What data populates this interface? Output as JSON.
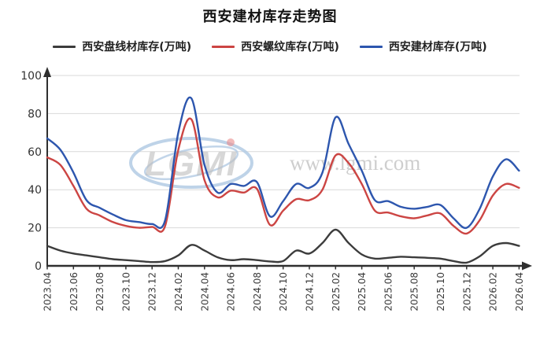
{
  "title": "西安建材库存走势图",
  "watermark": {
    "logo_text": "LGMI",
    "url_text": "www.lgmi.com"
  },
  "chart_data": {
    "type": "line",
    "title": "西安建材库存走势图",
    "x_start": "2023.04",
    "x_end": "2026.04",
    "x_step_months": 1,
    "x_tick_labels": [
      "2023.04",
      "2023.06",
      "2023.08",
      "2023.10",
      "2023.12",
      "2024.02",
      "2024.04",
      "2024.06",
      "2024.08",
      "2024.10",
      "2024.12",
      "2025.02",
      "2025.04",
      "2025.06",
      "2025.08",
      "2025.10",
      "2025.12",
      "2026.02",
      "2026.04"
    ],
    "ylim": [
      0,
      100
    ],
    "yticks": [
      0,
      20,
      40,
      60,
      80,
      100
    ],
    "grid": true,
    "legend_position": "top",
    "series": [
      {
        "name": "西安盘线材库存(万吨)",
        "color": "#3c3c3c",
        "values": [
          10.5,
          8,
          6.5,
          5.5,
          4.5,
          3.5,
          3,
          2.5,
          2,
          2.5,
          5.5,
          11,
          8,
          4.5,
          3,
          3.5,
          3,
          2.3,
          2.5,
          8,
          6.5,
          12,
          19,
          12,
          6,
          3.8,
          4.2,
          4.8,
          4.5,
          4.2,
          3.8,
          2.5,
          1.7,
          5,
          10.5,
          12,
          10.5
        ]
      },
      {
        "name": "西安螺纹库存(万吨)",
        "color": "#cc4543",
        "values": [
          57,
          53,
          42,
          30,
          26.5,
          23,
          21,
          20,
          20.5,
          21,
          61,
          77,
          45,
          36,
          39.5,
          38.5,
          40.5,
          21.5,
          29,
          35,
          34.5,
          40,
          58,
          54,
          43,
          29,
          28,
          26,
          25,
          26.5,
          27.5,
          21,
          17,
          24,
          37,
          43,
          41
        ]
      },
      {
        "name": "西安建材库存(万吨)",
        "color": "#2d56ae",
        "values": [
          67,
          61,
          49,
          34.5,
          30.5,
          27,
          24,
          23,
          22,
          24,
          70,
          88,
          53,
          38.5,
          43,
          42,
          44,
          26,
          34,
          43,
          41,
          49,
          78,
          64,
          50,
          34.5,
          34,
          31,
          30,
          31,
          32,
          25,
          20,
          30,
          47,
          56,
          50
        ]
      }
    ],
    "colors": {
      "grid": "#d9d9d9",
      "axis": "#2f2f2f",
      "tick_label": "#3a3a3a",
      "watermark_blue": "#b3cbe4",
      "watermark_gray": "#bfbfbf",
      "watermark_red": "#e98a8a"
    }
  }
}
